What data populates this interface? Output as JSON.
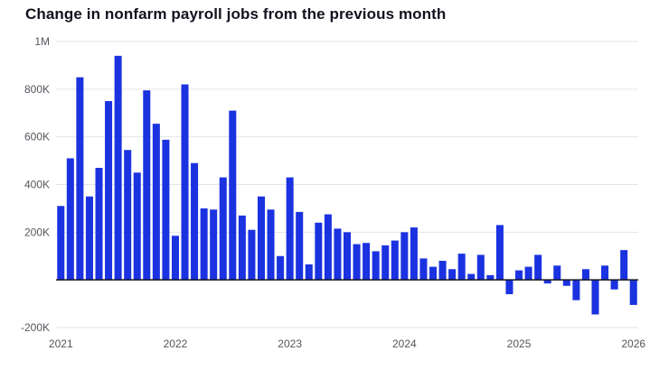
{
  "chart_data": {
    "type": "bar",
    "title": "Change in nonfarm payroll jobs from the previous month",
    "unit": "jobs (thousands)",
    "start_month": "2021-01",
    "frequency": "monthly",
    "x_tick_labels": [
      "2021",
      "2022",
      "2023",
      "2024",
      "2025",
      "2026"
    ],
    "x_tick_indices": [
      0,
      12,
      24,
      36,
      48,
      60
    ],
    "y_tick_labels": [
      "1M",
      "800K",
      "600K",
      "400K",
      "200K",
      "-200K"
    ],
    "y_tick_values": [
      1000,
      800,
      600,
      400,
      200,
      -200
    ],
    "ylim": [
      -200,
      1000
    ],
    "grid": true,
    "legend": false,
    "values_thousands": [
      310,
      510,
      850,
      350,
      470,
      750,
      940,
      545,
      450,
      795,
      655,
      588,
      185,
      820,
      490,
      300,
      295,
      430,
      710,
      270,
      210,
      350,
      295,
      100,
      430,
      285,
      65,
      240,
      275,
      215,
      200,
      150,
      155,
      120,
      145,
      165,
      200,
      220,
      90,
      55,
      80,
      45,
      110,
      25,
      105,
      20,
      230,
      -60,
      40,
      55,
      105,
      -15,
      60,
      -25,
      -85,
      45,
      -145,
      60,
      -40,
      125,
      -105
    ]
  },
  "colors": {
    "bar": "#1b32e0",
    "grid": "#e5e5e8",
    "zero_axis": "#17171f",
    "tick_text": "#55555e",
    "title_text": "#12121f",
    "background": "#ffffff"
  }
}
